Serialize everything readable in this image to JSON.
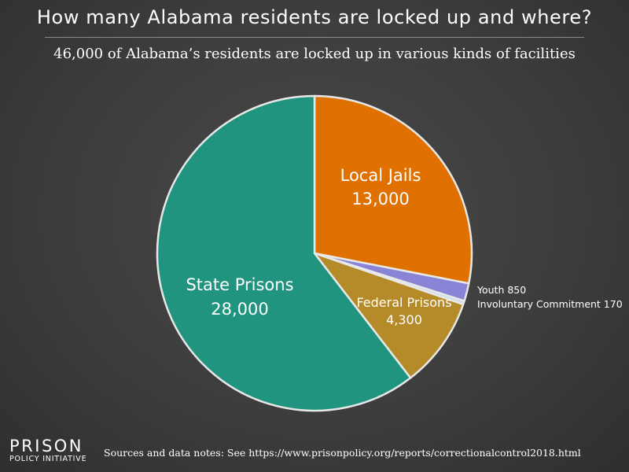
{
  "header": {
    "title": "How many Alabama residents are locked up and where?",
    "subtitle": "46,000 of Alabama’s residents are locked up in various kinds of facilities"
  },
  "chart_data": {
    "type": "pie",
    "start_angle_deg": 0,
    "direction": "clockwise",
    "slices": [
      {
        "name": "Local Jails",
        "value_label": "13,000",
        "value": 13000,
        "color": "#e07100",
        "label_position": "inside"
      },
      {
        "name": "Youth",
        "value_label": "850",
        "value": 850,
        "color": "#8a84d6",
        "label_position": "outside"
      },
      {
        "name": "Involuntary Commitment",
        "value_label": "170",
        "value": 170,
        "color": "#c9ddea",
        "label_position": "outside"
      },
      {
        "name": "Federal Prisons",
        "value_label": "4,300",
        "value": 4300,
        "color": "#b58a29",
        "label_position": "inside"
      },
      {
        "name": "State Prisons",
        "value_label": "28,000",
        "value": 28000,
        "color": "#20947e",
        "label_position": "inside"
      }
    ],
    "outside_labels": [
      {
        "text": "Youth 850"
      },
      {
        "text": "Involuntary Commitment 170"
      }
    ],
    "stroke_color": "#e8e8e8"
  },
  "footer": {
    "logo_main": "PRISON",
    "logo_sub": "POLICY INITIATIVE",
    "sources": "Sources and data notes: See https://www.prisonpolicy.org/reports/correctionalcontrol2018.html"
  }
}
